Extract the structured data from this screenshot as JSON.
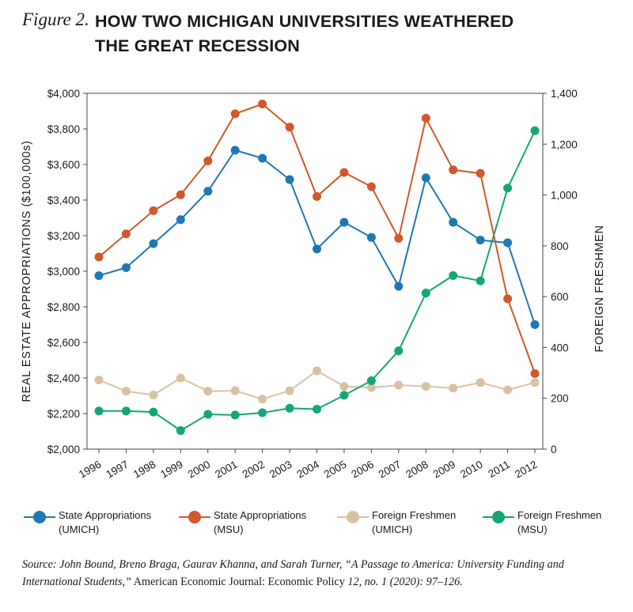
{
  "figure": {
    "label": "Figure 2.",
    "title_line1": "HOW TWO MICHIGAN UNIVERSITIES WEATHERED",
    "title_line2": "THE GREAT RECESSION"
  },
  "chart_data": {
    "type": "line",
    "categories": [
      "1996",
      "1997",
      "1998",
      "1999",
      "2000",
      "2001",
      "2002",
      "2003",
      "2004",
      "2005",
      "2006",
      "2007",
      "2008",
      "2009",
      "2010",
      "2011",
      "2012"
    ],
    "y_left": {
      "label": "REAL ESTATE APPROPRIATIONS ($100,000s)",
      "ylim": [
        2000,
        4000
      ],
      "ticks": [
        "$2,000",
        "$2,200",
        "$2,400",
        "$2,600",
        "$2,800",
        "$3,000",
        "$3,200",
        "$3,400",
        "$3,600",
        "$3,800",
        "$4,000"
      ]
    },
    "y_right": {
      "label": "FOREIGN FRESHMEN",
      "ylim": [
        0,
        1400
      ],
      "ticks": [
        "0",
        "200",
        "400",
        "600",
        "800",
        "1,000",
        "1,200",
        "1,400"
      ]
    },
    "grid": false,
    "legend_position": "bottom",
    "series": [
      {
        "name": "State Appropriations (UMICH)",
        "axis": "left",
        "color": "#1f77b4",
        "values": [
          2975,
          3020,
          3155,
          3290,
          3450,
          3680,
          3635,
          3515,
          3125,
          3275,
          3190,
          2915,
          3525,
          3275,
          3175,
          3160,
          2700
        ]
      },
      {
        "name": "State Appropriations (MSU)",
        "axis": "left",
        "color": "#d2572a",
        "values": [
          3080,
          3210,
          3340,
          3430,
          3620,
          3885,
          3940,
          3810,
          3420,
          3555,
          3475,
          3185,
          3860,
          3570,
          3550,
          2845,
          2425
        ]
      },
      {
        "name": "Foreign Freshmen (UMICH)",
        "axis": "right",
        "color": "#d9c2a3",
        "values": [
          272,
          228,
          213,
          280,
          228,
          230,
          197,
          230,
          308,
          247,
          242,
          252,
          247,
          240,
          262,
          233,
          262
        ]
      },
      {
        "name": "Foreign Freshmen (MSU)",
        "axis": "right",
        "color": "#14a776",
        "values": [
          150,
          150,
          146,
          73,
          137,
          134,
          143,
          161,
          157,
          212,
          269,
          387,
          614,
          683,
          662,
          1027,
          1253
        ]
      }
    ]
  },
  "legend": [
    {
      "line1": "State Appropriations",
      "line2": "(UMICH)",
      "color": "#1f77b4"
    },
    {
      "line1": "State Appropriations",
      "line2": "(MSU)",
      "color": "#d2572a"
    },
    {
      "line1": "Foreign Freshmen",
      "line2": "(UMICH)",
      "color": "#d9c2a3"
    },
    {
      "line1": "Foreign Freshmen",
      "line2": "(MSU)",
      "color": "#14a776"
    }
  ],
  "source": {
    "part1": "Source: John Bound, Breno Braga, Gaurav Khanna, and Sarah Turner, “A Passage to America: University Funding and International Students,”",
    "part2": " American Economic Journal: Economic Policy ",
    "part3": "12, no. 1 (2020): 97–126."
  }
}
